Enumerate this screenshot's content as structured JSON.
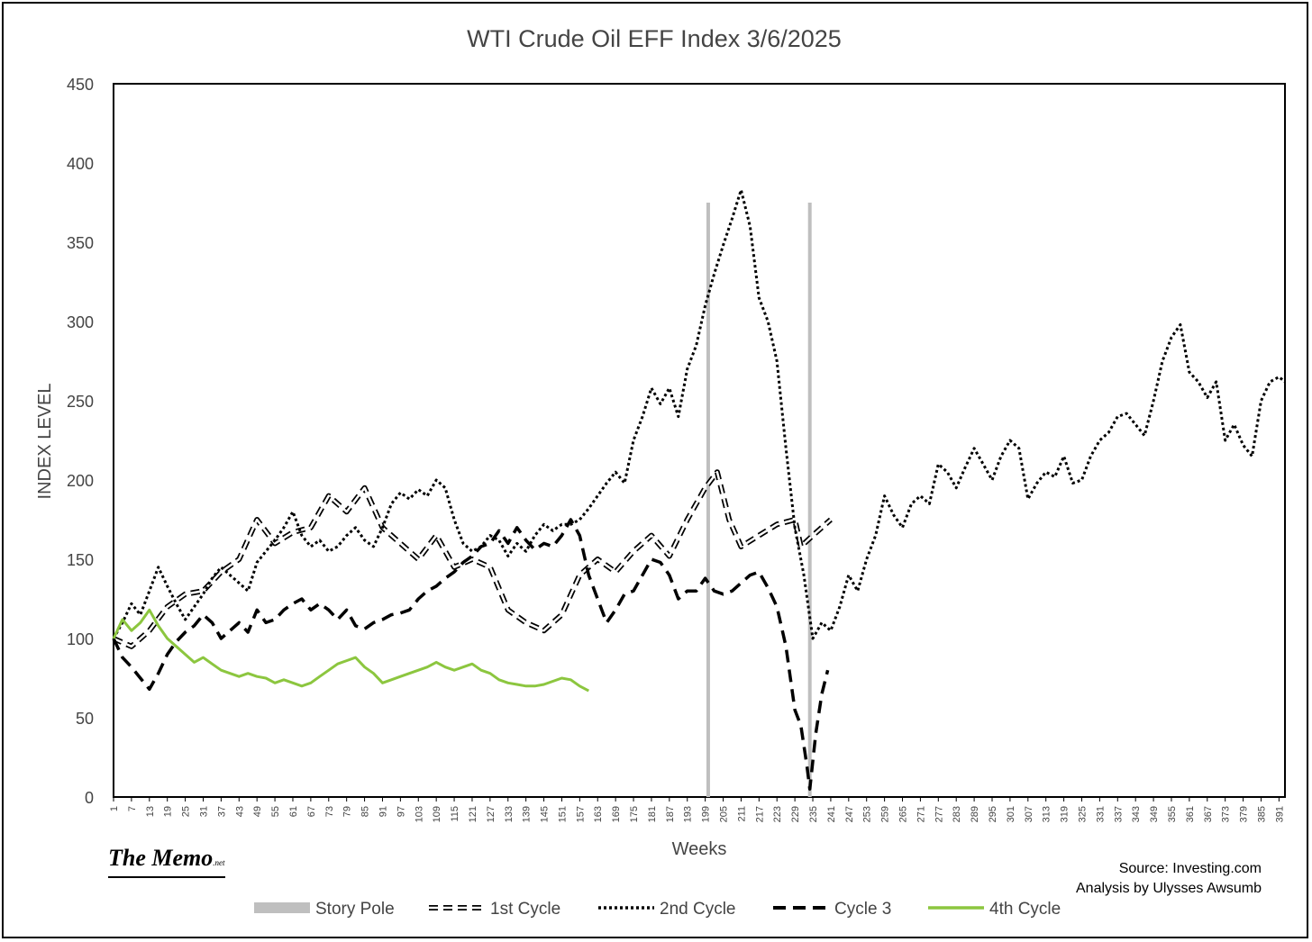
{
  "branding": {
    "logo_main": "The Memo",
    "logo_suffix": ".net"
  },
  "credits": {
    "source": "Source: Investing.com",
    "analysis": "Analysis by Ulysses Awsumb"
  },
  "chart_data": {
    "type": "line",
    "title": "WTI Crude Oil EFF Index 3/6/2025",
    "xlabel": "Weeks",
    "ylabel": "INDEX LEVEL",
    "xlim": [
      1,
      393
    ],
    "ylim": [
      0,
      450
    ],
    "y_ticks": [
      0,
      50,
      100,
      150,
      200,
      250,
      300,
      350,
      400,
      450
    ],
    "x_tick_start": 1,
    "x_tick_step": 6,
    "x_tick_end": 391,
    "grid": false,
    "legend_position": "bottom",
    "series": [
      {
        "name": "Story Pole",
        "color": "#bfbfbf",
        "style": "solid",
        "segments": [
          [
            [
              200,
              0
            ],
            [
              200,
              375
            ]
          ],
          [
            [
              234,
              0
            ],
            [
              234,
              375
            ]
          ]
        ]
      },
      {
        "name": "1st Cycle",
        "color": "#000000",
        "style": "double-dash",
        "points": [
          [
            1,
            100
          ],
          [
            7,
            95
          ],
          [
            13,
            105
          ],
          [
            19,
            120
          ],
          [
            25,
            128
          ],
          [
            31,
            130
          ],
          [
            37,
            142
          ],
          [
            43,
            150
          ],
          [
            49,
            175
          ],
          [
            55,
            160
          ],
          [
            61,
            167
          ],
          [
            67,
            170
          ],
          [
            73,
            190
          ],
          [
            79,
            180
          ],
          [
            85,
            195
          ],
          [
            91,
            170
          ],
          [
            97,
            160
          ],
          [
            103,
            150
          ],
          [
            109,
            165
          ],
          [
            115,
            145
          ],
          [
            121,
            150
          ],
          [
            127,
            145
          ],
          [
            133,
            118
          ],
          [
            139,
            110
          ],
          [
            145,
            105
          ],
          [
            151,
            115
          ],
          [
            157,
            140
          ],
          [
            163,
            150
          ],
          [
            169,
            142
          ],
          [
            175,
            155
          ],
          [
            181,
            165
          ],
          [
            187,
            152
          ],
          [
            193,
            175
          ],
          [
            199,
            195
          ],
          [
            203,
            205
          ],
          [
            207,
            175
          ],
          [
            211,
            158
          ],
          [
            217,
            165
          ],
          [
            223,
            172
          ],
          [
            229,
            175
          ],
          [
            231,
            158
          ],
          [
            235,
            165
          ],
          [
            241,
            175
          ]
        ]
      },
      {
        "name": "2nd Cycle",
        "color": "#000000",
        "style": "dotted",
        "points": [
          [
            1,
            100
          ],
          [
            4,
            110
          ],
          [
            7,
            122
          ],
          [
            10,
            115
          ],
          [
            13,
            130
          ],
          [
            16,
            145
          ],
          [
            19,
            133
          ],
          [
            22,
            122
          ],
          [
            25,
            112
          ],
          [
            28,
            120
          ],
          [
            31,
            128
          ],
          [
            34,
            138
          ],
          [
            37,
            145
          ],
          [
            40,
            140
          ],
          [
            43,
            135
          ],
          [
            46,
            130
          ],
          [
            49,
            148
          ],
          [
            52,
            155
          ],
          [
            55,
            162
          ],
          [
            58,
            170
          ],
          [
            61,
            180
          ],
          [
            64,
            165
          ],
          [
            67,
            158
          ],
          [
            70,
            162
          ],
          [
            73,
            155
          ],
          [
            76,
            158
          ],
          [
            79,
            165
          ],
          [
            82,
            170
          ],
          [
            85,
            162
          ],
          [
            88,
            158
          ],
          [
            91,
            170
          ],
          [
            94,
            185
          ],
          [
            97,
            192
          ],
          [
            100,
            188
          ],
          [
            103,
            194
          ],
          [
            106,
            190
          ],
          [
            109,
            200
          ],
          [
            112,
            195
          ],
          [
            115,
            175
          ],
          [
            118,
            160
          ],
          [
            121,
            155
          ],
          [
            124,
            158
          ],
          [
            127,
            165
          ],
          [
            130,
            162
          ],
          [
            133,
            152
          ],
          [
            136,
            160
          ],
          [
            139,
            155
          ],
          [
            142,
            165
          ],
          [
            145,
            172
          ],
          [
            148,
            168
          ],
          [
            151,
            172
          ],
          [
            154,
            172
          ],
          [
            157,
            175
          ],
          [
            160,
            182
          ],
          [
            163,
            190
          ],
          [
            166,
            198
          ],
          [
            169,
            205
          ],
          [
            172,
            198
          ],
          [
            175,
            225
          ],
          [
            178,
            240
          ],
          [
            181,
            258
          ],
          [
            184,
            248
          ],
          [
            187,
            258
          ],
          [
            190,
            240
          ],
          [
            193,
            270
          ],
          [
            196,
            285
          ],
          [
            199,
            310
          ],
          [
            202,
            330
          ],
          [
            205,
            348
          ],
          [
            208,
            365
          ],
          [
            211,
            383
          ],
          [
            214,
            360
          ],
          [
            217,
            315
          ],
          [
            220,
            300
          ],
          [
            223,
            275
          ],
          [
            226,
            220
          ],
          [
            229,
            170
          ],
          [
            232,
            140
          ],
          [
            235,
            100
          ],
          [
            238,
            110
          ],
          [
            241,
            105
          ],
          [
            244,
            120
          ],
          [
            247,
            140
          ],
          [
            250,
            130
          ],
          [
            253,
            150
          ],
          [
            256,
            165
          ],
          [
            259,
            190
          ],
          [
            262,
            178
          ],
          [
            265,
            170
          ],
          [
            268,
            185
          ],
          [
            271,
            190
          ],
          [
            274,
            185
          ],
          [
            277,
            210
          ],
          [
            280,
            205
          ],
          [
            283,
            195
          ],
          [
            286,
            208
          ],
          [
            289,
            220
          ],
          [
            292,
            210
          ],
          [
            295,
            200
          ],
          [
            298,
            215
          ],
          [
            301,
            225
          ],
          [
            304,
            220
          ],
          [
            307,
            188
          ],
          [
            310,
            198
          ],
          [
            313,
            205
          ],
          [
            316,
            202
          ],
          [
            319,
            215
          ],
          [
            322,
            198
          ],
          [
            325,
            200
          ],
          [
            328,
            215
          ],
          [
            331,
            225
          ],
          [
            334,
            230
          ],
          [
            337,
            240
          ],
          [
            340,
            242
          ],
          [
            343,
            235
          ],
          [
            346,
            228
          ],
          [
            349,
            250
          ],
          [
            352,
            275
          ],
          [
            355,
            290
          ],
          [
            358,
            298
          ],
          [
            361,
            268
          ],
          [
            364,
            262
          ],
          [
            367,
            252
          ],
          [
            370,
            262
          ],
          [
            373,
            225
          ],
          [
            376,
            235
          ],
          [
            379,
            222
          ],
          [
            382,
            215
          ],
          [
            385,
            250
          ],
          [
            388,
            262
          ],
          [
            391,
            265
          ],
          [
            393,
            262
          ]
        ]
      },
      {
        "name": "Cycle 3",
        "color": "#000000",
        "style": "dashed",
        "points": [
          [
            1,
            100
          ],
          [
            4,
            88
          ],
          [
            7,
            82
          ],
          [
            10,
            75
          ],
          [
            13,
            68
          ],
          [
            16,
            78
          ],
          [
            19,
            90
          ],
          [
            22,
            98
          ],
          [
            25,
            104
          ],
          [
            28,
            108
          ],
          [
            31,
            115
          ],
          [
            34,
            110
          ],
          [
            37,
            100
          ],
          [
            40,
            105
          ],
          [
            43,
            110
          ],
          [
            46,
            104
          ],
          [
            49,
            118
          ],
          [
            52,
            110
          ],
          [
            55,
            112
          ],
          [
            58,
            118
          ],
          [
            61,
            122
          ],
          [
            64,
            125
          ],
          [
            67,
            118
          ],
          [
            70,
            122
          ],
          [
            73,
            118
          ],
          [
            76,
            112
          ],
          [
            79,
            118
          ],
          [
            82,
            108
          ],
          [
            85,
            106
          ],
          [
            88,
            110
          ],
          [
            91,
            112
          ],
          [
            94,
            115
          ],
          [
            97,
            116
          ],
          [
            100,
            118
          ],
          [
            103,
            125
          ],
          [
            106,
            130
          ],
          [
            109,
            133
          ],
          [
            112,
            138
          ],
          [
            115,
            142
          ],
          [
            118,
            148
          ],
          [
            121,
            152
          ],
          [
            124,
            158
          ],
          [
            127,
            160
          ],
          [
            130,
            168
          ],
          [
            133,
            160
          ],
          [
            136,
            170
          ],
          [
            139,
            162
          ],
          [
            142,
            156
          ],
          [
            145,
            160
          ],
          [
            148,
            158
          ],
          [
            151,
            165
          ],
          [
            154,
            175
          ],
          [
            157,
            165
          ],
          [
            160,
            140
          ],
          [
            163,
            125
          ],
          [
            166,
            110
          ],
          [
            169,
            118
          ],
          [
            172,
            128
          ],
          [
            175,
            130
          ],
          [
            178,
            140
          ],
          [
            181,
            150
          ],
          [
            184,
            148
          ],
          [
            187,
            140
          ],
          [
            190,
            125
          ],
          [
            193,
            130
          ],
          [
            196,
            130
          ],
          [
            199,
            138
          ],
          [
            202,
            130
          ],
          [
            205,
            128
          ],
          [
            208,
            130
          ],
          [
            211,
            135
          ],
          [
            214,
            140
          ],
          [
            217,
            142
          ],
          [
            220,
            132
          ],
          [
            223,
            120
          ],
          [
            226,
            95
          ],
          [
            229,
            55
          ],
          [
            231,
            45
          ],
          [
            233,
            20
          ],
          [
            234,
            5
          ],
          [
            236,
            40
          ],
          [
            238,
            65
          ],
          [
            240,
            80
          ]
        ]
      },
      {
        "name": "4th Cycle",
        "color": "#8cc63f",
        "style": "solid",
        "points": [
          [
            1,
            100
          ],
          [
            4,
            112
          ],
          [
            7,
            105
          ],
          [
            10,
            110
          ],
          [
            13,
            118
          ],
          [
            16,
            108
          ],
          [
            19,
            100
          ],
          [
            22,
            95
          ],
          [
            25,
            90
          ],
          [
            28,
            85
          ],
          [
            31,
            88
          ],
          [
            34,
            84
          ],
          [
            37,
            80
          ],
          [
            40,
            78
          ],
          [
            43,
            76
          ],
          [
            46,
            78
          ],
          [
            49,
            76
          ],
          [
            52,
            75
          ],
          [
            55,
            72
          ],
          [
            58,
            74
          ],
          [
            61,
            72
          ],
          [
            64,
            70
          ],
          [
            67,
            72
          ],
          [
            70,
            76
          ],
          [
            73,
            80
          ],
          [
            76,
            84
          ],
          [
            79,
            86
          ],
          [
            82,
            88
          ],
          [
            85,
            82
          ],
          [
            88,
            78
          ],
          [
            91,
            72
          ],
          [
            94,
            74
          ],
          [
            97,
            76
          ],
          [
            100,
            78
          ],
          [
            103,
            80
          ],
          [
            106,
            82
          ],
          [
            109,
            85
          ],
          [
            112,
            82
          ],
          [
            115,
            80
          ],
          [
            118,
            82
          ],
          [
            121,
            84
          ],
          [
            124,
            80
          ],
          [
            127,
            78
          ],
          [
            130,
            74
          ],
          [
            133,
            72
          ],
          [
            136,
            71
          ],
          [
            139,
            70
          ],
          [
            142,
            70
          ],
          [
            145,
            71
          ],
          [
            148,
            73
          ],
          [
            151,
            75
          ],
          [
            154,
            74
          ],
          [
            157,
            70
          ],
          [
            160,
            67
          ]
        ]
      }
    ]
  }
}
